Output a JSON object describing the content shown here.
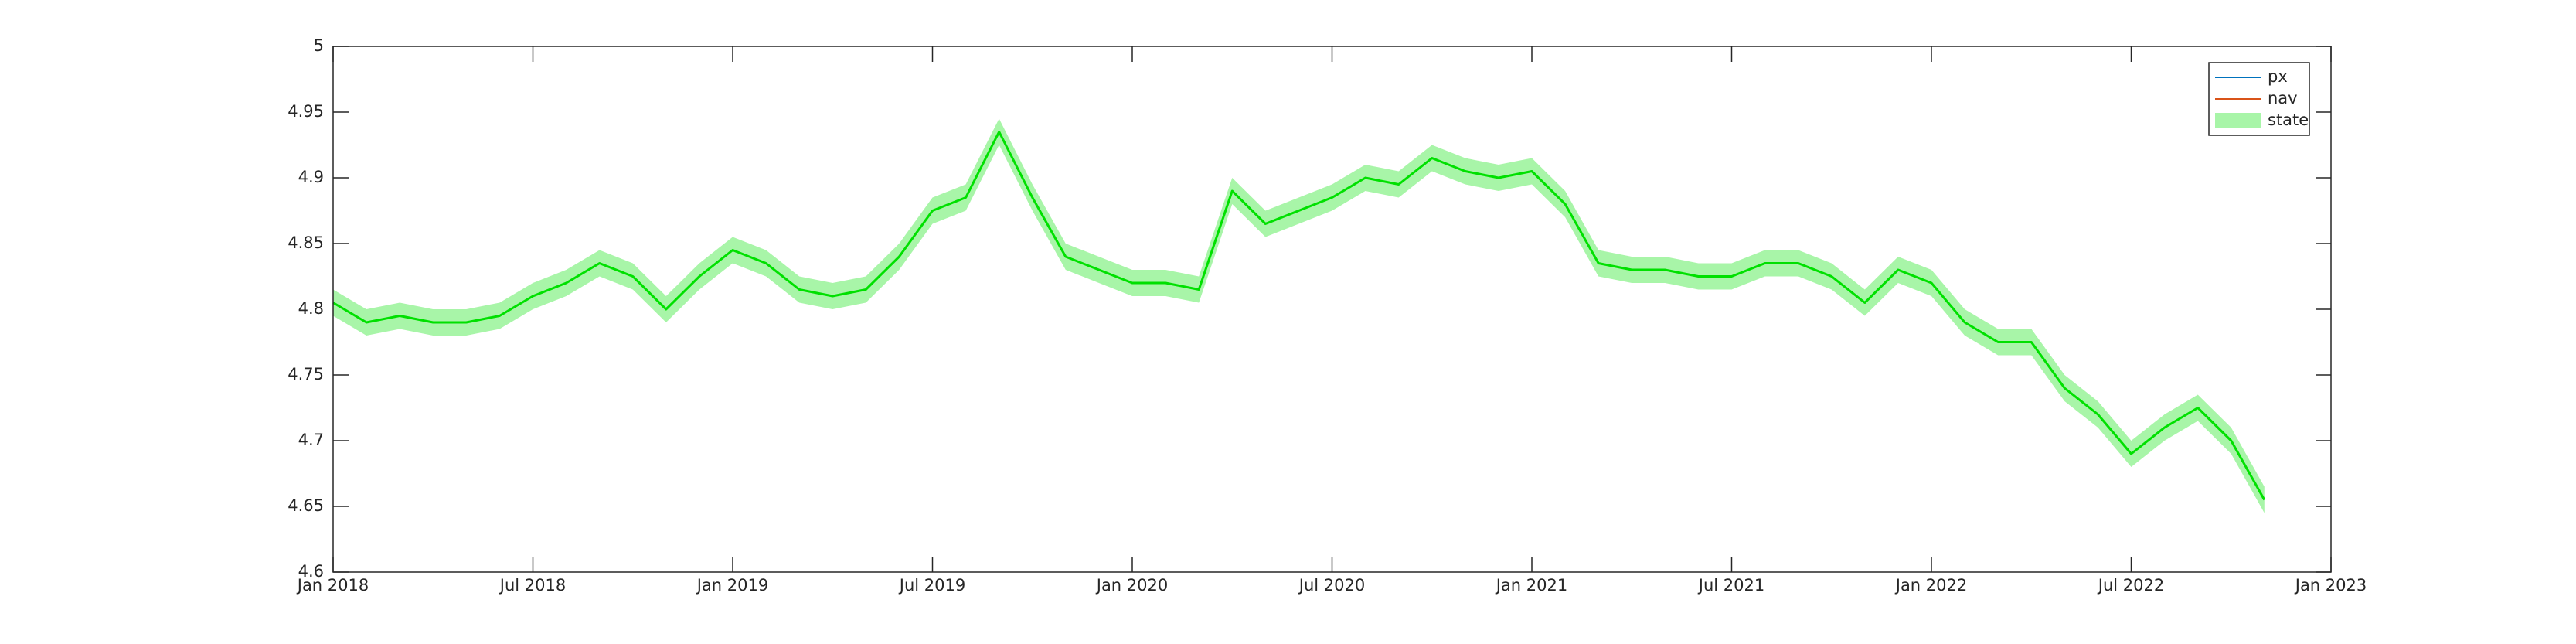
{
  "chart_data": {
    "type": "line",
    "x": [
      "2018-01",
      "2018-02",
      "2018-03",
      "2018-04",
      "2018-05",
      "2018-06",
      "2018-07",
      "2018-08",
      "2018-09",
      "2018-10",
      "2018-11",
      "2018-12",
      "2019-01",
      "2019-02",
      "2019-03",
      "2019-04",
      "2019-05",
      "2019-06",
      "2019-07",
      "2019-08",
      "2019-09",
      "2019-10",
      "2019-11",
      "2019-12",
      "2020-01",
      "2020-02",
      "2020-03",
      "2020-04",
      "2020-05",
      "2020-06",
      "2020-07",
      "2020-08",
      "2020-09",
      "2020-10",
      "2020-11",
      "2020-12",
      "2021-01",
      "2021-02",
      "2021-03",
      "2021-04",
      "2021-05",
      "2021-06",
      "2021-07",
      "2021-08",
      "2021-09",
      "2021-10",
      "2021-11",
      "2021-12",
      "2022-01",
      "2022-02",
      "2022-03",
      "2022-04",
      "2022-05",
      "2022-06",
      "2022-07",
      "2022-08",
      "2022-09",
      "2022-10",
      "2022-11"
    ],
    "series": [
      {
        "name": "px",
        "color": "#0072bd",
        "values": [
          null,
          null,
          null,
          null,
          null,
          null,
          null,
          null,
          null,
          null,
          null,
          null,
          null,
          null,
          null,
          null,
          null,
          null,
          null,
          null,
          null,
          null,
          null,
          null,
          null,
          null,
          null,
          null,
          null,
          null,
          null,
          null,
          null,
          null,
          null,
          null,
          null,
          null,
          null,
          null,
          null,
          null,
          null,
          null,
          null,
          null,
          null,
          null,
          null,
          null,
          null,
          null,
          null,
          null,
          null,
          null,
          null,
          null,
          null
        ]
      },
      {
        "name": "nav",
        "color": "#d95319",
        "values": [
          null,
          null,
          null,
          null,
          null,
          null,
          null,
          null,
          null,
          null,
          null,
          null,
          null,
          null,
          null,
          null,
          null,
          null,
          null,
          null,
          null,
          null,
          null,
          null,
          null,
          null,
          null,
          null,
          null,
          null,
          null,
          null,
          null,
          null,
          null,
          null,
          null,
          null,
          null,
          null,
          null,
          null,
          null,
          null,
          null,
          null,
          null,
          null,
          null,
          null,
          null,
          null,
          null,
          null,
          null,
          null,
          null,
          null,
          null
        ]
      },
      {
        "name": "state",
        "color": "#00e000",
        "band_color": "#a8f5a8",
        "values": [
          4.805,
          4.79,
          4.795,
          4.79,
          4.79,
          4.795,
          4.81,
          4.82,
          4.835,
          4.825,
          4.8,
          4.825,
          4.845,
          4.835,
          4.815,
          4.81,
          4.815,
          4.84,
          4.875,
          4.885,
          4.935,
          4.885,
          4.84,
          4.83,
          4.82,
          4.82,
          4.815,
          4.89,
          4.865,
          4.875,
          4.885,
          4.9,
          4.895,
          4.915,
          4.905,
          4.9,
          4.905,
          4.88,
          4.835,
          4.83,
          4.83,
          4.825,
          4.825,
          4.835,
          4.835,
          4.825,
          4.805,
          4.83,
          4.82,
          4.79,
          4.775,
          4.775,
          4.74,
          4.72,
          4.69,
          4.71,
          4.725,
          4.7,
          4.655
        ],
        "lower": [
          4.795,
          4.78,
          4.785,
          4.78,
          4.78,
          4.785,
          4.8,
          4.81,
          4.825,
          4.815,
          4.79,
          4.815,
          4.835,
          4.825,
          4.805,
          4.8,
          4.805,
          4.83,
          4.865,
          4.875,
          4.925,
          4.875,
          4.83,
          4.82,
          4.81,
          4.81,
          4.805,
          4.88,
          4.855,
          4.865,
          4.875,
          4.89,
          4.885,
          4.905,
          4.895,
          4.89,
          4.895,
          4.87,
          4.825,
          4.82,
          4.82,
          4.815,
          4.815,
          4.825,
          4.825,
          4.815,
          4.795,
          4.82,
          4.81,
          4.78,
          4.765,
          4.765,
          4.73,
          4.71,
          4.68,
          4.7,
          4.715,
          4.69,
          4.645
        ],
        "upper": [
          4.815,
          4.8,
          4.805,
          4.8,
          4.8,
          4.805,
          4.82,
          4.83,
          4.845,
          4.835,
          4.81,
          4.835,
          4.855,
          4.845,
          4.825,
          4.82,
          4.825,
          4.85,
          4.885,
          4.895,
          4.945,
          4.895,
          4.85,
          4.84,
          4.83,
          4.83,
          4.825,
          4.9,
          4.875,
          4.885,
          4.895,
          4.91,
          4.905,
          4.925,
          4.915,
          4.91,
          4.915,
          4.89,
          4.845,
          4.84,
          4.84,
          4.835,
          4.835,
          4.845,
          4.845,
          4.835,
          4.815,
          4.84,
          4.83,
          4.8,
          4.785,
          4.785,
          4.75,
          4.73,
          4.7,
          4.72,
          4.735,
          4.71,
          4.665
        ]
      }
    ],
    "xlim": [
      "2018-01",
      "2023-01"
    ],
    "xticks": [
      {
        "value": "2018-01",
        "label": "Jan 2018"
      },
      {
        "value": "2018-07",
        "label": "Jul 2018"
      },
      {
        "value": "2019-01",
        "label": "Jan 2019"
      },
      {
        "value": "2019-07",
        "label": "Jul 2019"
      },
      {
        "value": "2020-01",
        "label": "Jan 2020"
      },
      {
        "value": "2020-07",
        "label": "Jul 2020"
      },
      {
        "value": "2021-01",
        "label": "Jan 2021"
      },
      {
        "value": "2021-07",
        "label": "Jul 2021"
      },
      {
        "value": "2022-01",
        "label": "Jan 2022"
      },
      {
        "value": "2022-07",
        "label": "Jul 2022"
      },
      {
        "value": "2023-01",
        "label": "Jan 2023"
      }
    ],
    "ylim": [
      4.6,
      5
    ],
    "yticks": [
      4.6,
      4.65,
      4.7,
      4.75,
      4.8,
      4.85,
      4.9,
      4.95,
      5
    ],
    "grid": false,
    "legend": "northeast"
  }
}
